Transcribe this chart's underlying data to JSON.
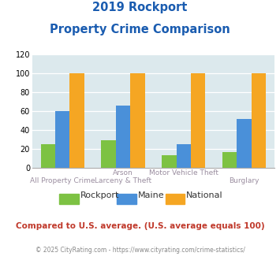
{
  "title_line1": "2019 Rockport",
  "title_line2": "Property Crime Comparison",
  "cat_labels_row1": [
    "",
    "Arson",
    "Motor Vehicle Theft",
    ""
  ],
  "cat_labels_row2": [
    "All Property Crime",
    "Larceny & Theft",
    "",
    "Burglary"
  ],
  "groups": [
    "Rockport",
    "Maine",
    "National"
  ],
  "values": {
    "Rockport": [
      25,
      29,
      13,
      17
    ],
    "Maine": [
      60,
      66,
      25,
      52
    ],
    "National": [
      100,
      100,
      100,
      100
    ]
  },
  "bar_colors": {
    "Rockport": "#7dc243",
    "Maine": "#4a90d9",
    "National": "#f5a623"
  },
  "ylim": [
    0,
    120
  ],
  "yticks": [
    0,
    20,
    40,
    60,
    80,
    100,
    120
  ],
  "background_color": "#dce9ed",
  "title_color": "#1a5cb0",
  "xlabel_color": "#9b8ea0",
  "footer_text": "Compared to U.S. average. (U.S. average equals 100)",
  "footer_color": "#c0392b",
  "credit_text": "© 2025 CityRating.com - https://www.cityrating.com/crime-statistics/",
  "credit_color": "#888888",
  "legend_labels": [
    "Rockport",
    "Maine",
    "National"
  ]
}
